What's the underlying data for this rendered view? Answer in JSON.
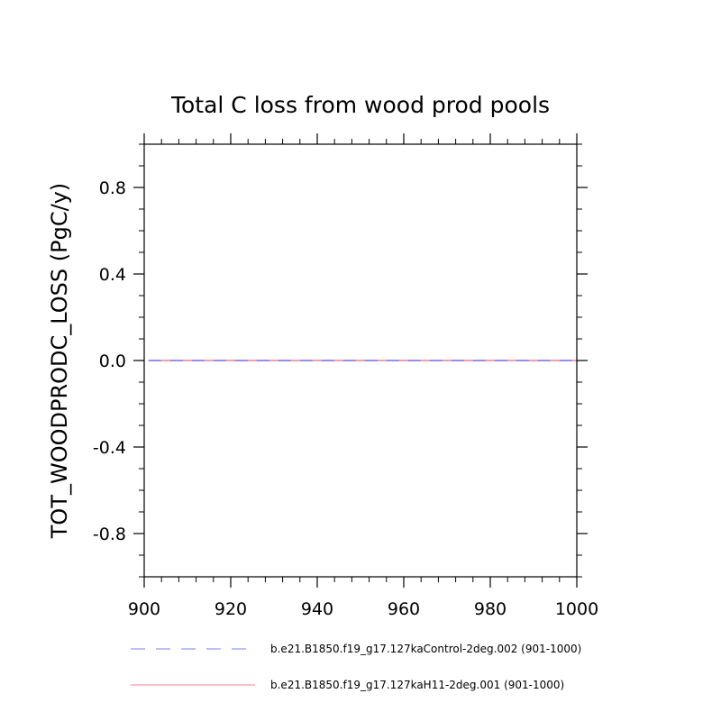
{
  "chart_data": {
    "type": "line",
    "title": "Total C loss from wood prod pools",
    "xlabel": "",
    "ylabel": "TOT_WOODPRODC_LOSS  (PgC/y)",
    "xlim": [
      900,
      1000
    ],
    "ylim": [
      -1.0,
      1.0
    ],
    "x_ticks": [
      900,
      920,
      940,
      960,
      980,
      1000
    ],
    "x_tick_labels": [
      "900",
      "920",
      "940",
      "960",
      "980",
      "1000"
    ],
    "y_ticks": [
      -0.8,
      -0.4,
      0.0,
      0.4,
      0.8
    ],
    "y_tick_labels": [
      "-0.8",
      "-0.4",
      "0.0",
      "0.4",
      "0.8"
    ],
    "grid": false,
    "legend_position": "bottom",
    "series": [
      {
        "name": "b.e21.B1850.f19_g17.127kaControl-2deg.002 (901-1000)",
        "color": "#7b7bf5",
        "dash": "dashed",
        "x": [
          901,
          1000
        ],
        "y": [
          0.0,
          0.0
        ]
      },
      {
        "name": "b.e21.B1850.f19_g17.127kaH11-2deg.001 (901-1000)",
        "color": "#f08090",
        "dash": "solid",
        "x": [
          901,
          1000
        ],
        "y": [
          0.0,
          0.0
        ]
      }
    ]
  }
}
